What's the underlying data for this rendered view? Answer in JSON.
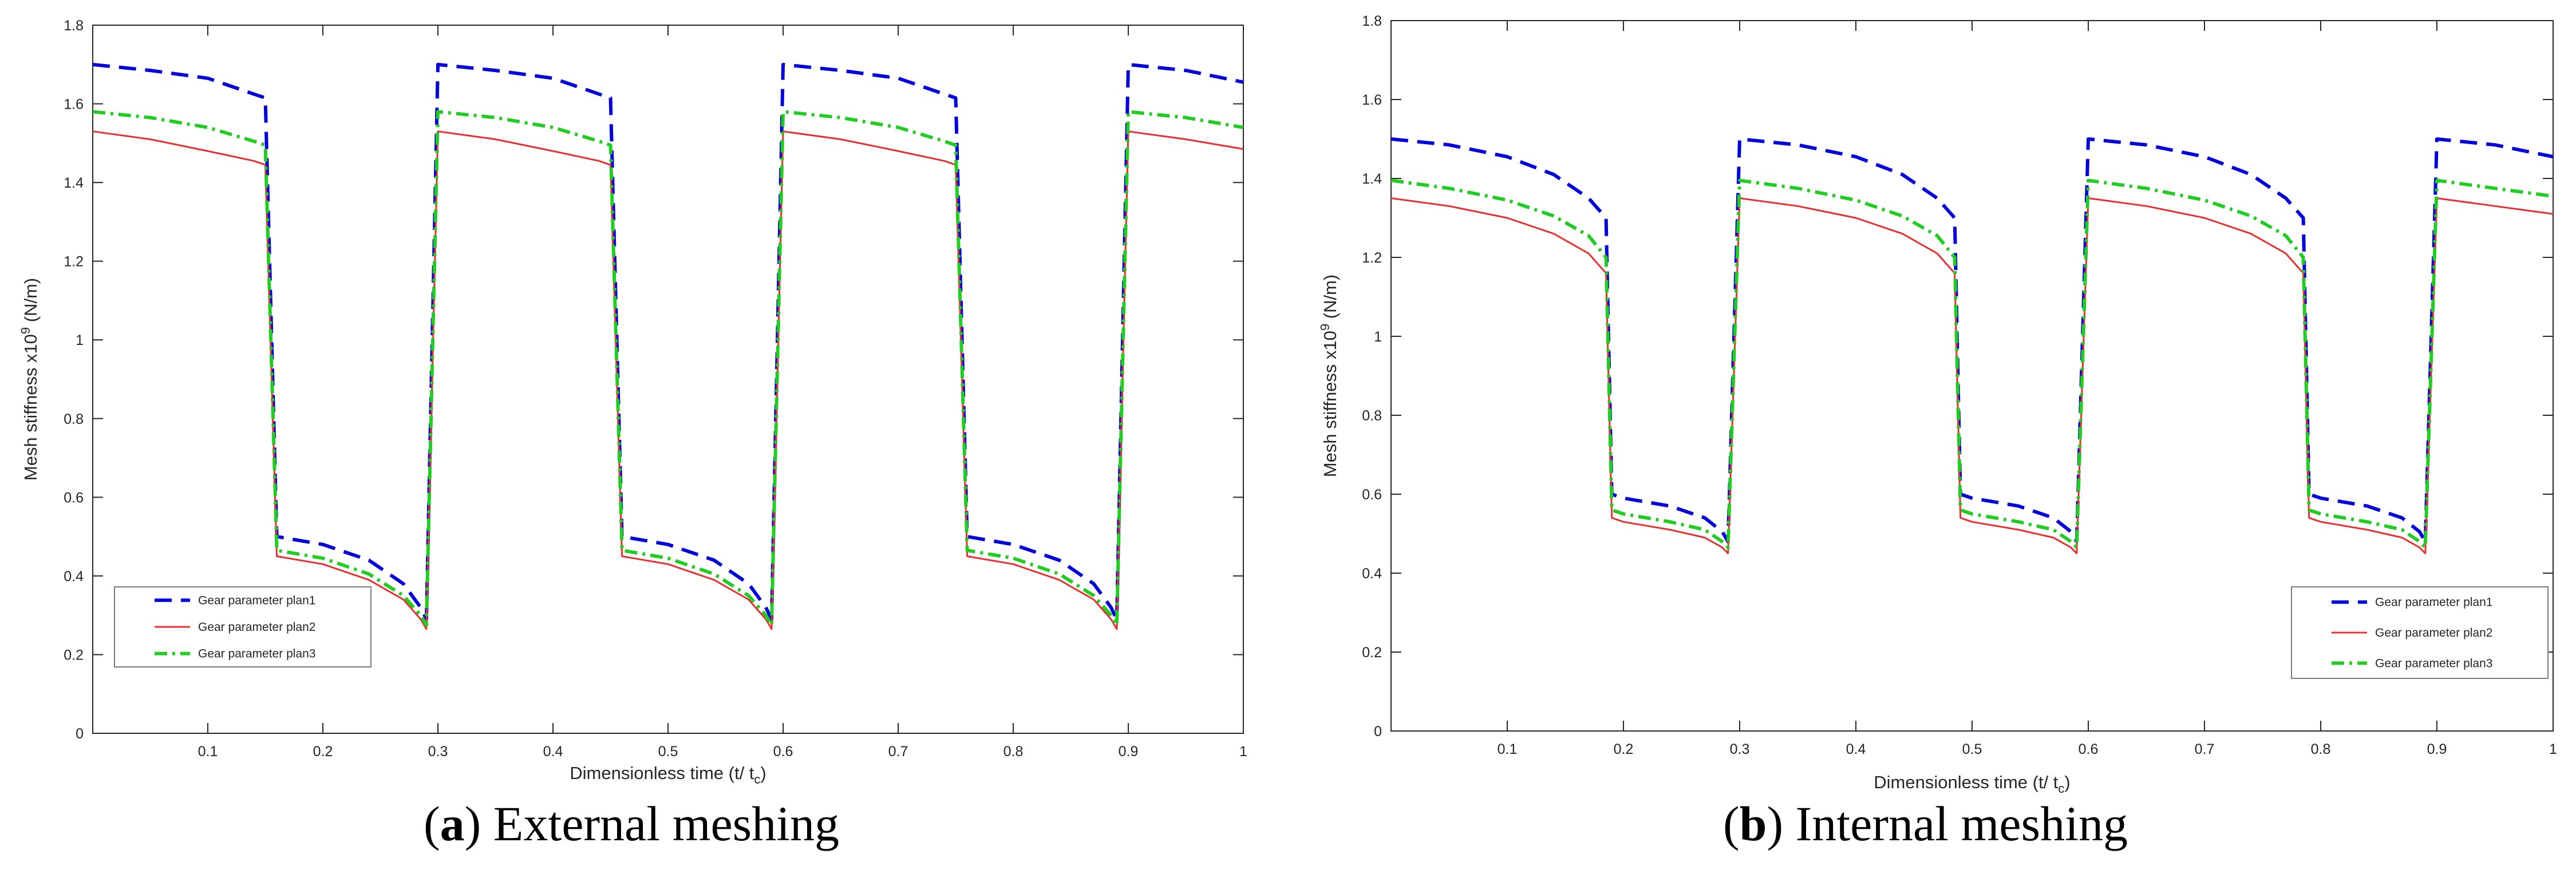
{
  "chart_data": [
    {
      "type": "line",
      "caption": {
        "letter": "a",
        "text": "External meshing"
      },
      "xlabel": "Dimensionless time (t/ t",
      "xlabel_sub": "c",
      "ylabel": "Mesh stiffness  x10",
      "ylabel_sup": "9",
      "ylabel_unit": " (N/m)",
      "xlim": [
        0,
        1
      ],
      "ylim": [
        0,
        1.8
      ],
      "xticks": [
        "0.1",
        "0.2",
        "0.3",
        "0.4",
        "0.5",
        "0.6",
        "0.7",
        "0.8",
        "0.9",
        "1"
      ],
      "yticks": [
        "0",
        "0.2",
        "0.4",
        "0.6",
        "0.8",
        "1",
        "1.2",
        "1.4",
        "1.6",
        "1.8"
      ],
      "legend_position": "bottom-left",
      "series": [
        {
          "name": "Gear parameter plan1",
          "color": "#0000dd",
          "dash": "dashed",
          "x": [
            0,
            0.05,
            0.1,
            0.14,
            0.15,
            0.16,
            0.2,
            0.24,
            0.27,
            0.285,
            0.29,
            0.3,
            0.35,
            0.4,
            0.44,
            0.45,
            0.46,
            0.5,
            0.54,
            0.57,
            0.585,
            0.59,
            0.6,
            0.65,
            0.7,
            0.74,
            0.75,
            0.76,
            0.8,
            0.84,
            0.87,
            0.885,
            0.89,
            0.9,
            0.95,
            1.0
          ],
          "y": [
            1.7,
            1.685,
            1.665,
            1.625,
            1.615,
            0.5,
            0.48,
            0.44,
            0.38,
            0.32,
            0.29,
            1.7,
            1.685,
            1.665,
            1.625,
            1.615,
            0.5,
            0.48,
            0.44,
            0.38,
            0.32,
            0.29,
            1.7,
            1.685,
            1.665,
            1.625,
            1.615,
            0.5,
            0.48,
            0.44,
            0.38,
            0.32,
            0.29,
            1.7,
            1.685,
            1.655
          ]
        },
        {
          "name": "Gear parameter plan2",
          "color": "#e83030",
          "dash": "solid",
          "x": [
            0,
            0.05,
            0.1,
            0.14,
            0.15,
            0.16,
            0.2,
            0.24,
            0.27,
            0.285,
            0.29,
            0.3,
            0.35,
            0.4,
            0.44,
            0.45,
            0.46,
            0.5,
            0.54,
            0.57,
            0.585,
            0.59,
            0.6,
            0.65,
            0.7,
            0.74,
            0.75,
            0.76,
            0.8,
            0.84,
            0.87,
            0.885,
            0.89,
            0.9,
            0.95,
            1.0
          ],
          "y": [
            1.53,
            1.51,
            1.48,
            1.455,
            1.445,
            0.45,
            0.43,
            0.39,
            0.34,
            0.29,
            0.265,
            1.53,
            1.51,
            1.48,
            1.455,
            1.445,
            0.45,
            0.43,
            0.39,
            0.34,
            0.29,
            0.265,
            1.53,
            1.51,
            1.48,
            1.455,
            1.445,
            0.45,
            0.43,
            0.39,
            0.34,
            0.29,
            0.265,
            1.53,
            1.51,
            1.485
          ]
        },
        {
          "name": "Gear parameter plan3",
          "color": "#22cc22",
          "dash": "dashdot",
          "x": [
            0,
            0.05,
            0.1,
            0.14,
            0.15,
            0.16,
            0.2,
            0.24,
            0.27,
            0.285,
            0.29,
            0.3,
            0.35,
            0.4,
            0.44,
            0.45,
            0.46,
            0.5,
            0.54,
            0.57,
            0.585,
            0.59,
            0.6,
            0.65,
            0.7,
            0.74,
            0.75,
            0.76,
            0.8,
            0.84,
            0.87,
            0.885,
            0.89,
            0.9,
            0.95,
            1.0
          ],
          "y": [
            1.58,
            1.565,
            1.54,
            1.505,
            1.495,
            0.465,
            0.445,
            0.405,
            0.35,
            0.3,
            0.275,
            1.58,
            1.565,
            1.54,
            1.505,
            1.495,
            0.465,
            0.445,
            0.405,
            0.35,
            0.3,
            0.275,
            1.58,
            1.565,
            1.54,
            1.505,
            1.495,
            0.465,
            0.445,
            0.405,
            0.35,
            0.3,
            0.275,
            1.58,
            1.565,
            1.54
          ]
        }
      ]
    },
    {
      "type": "line",
      "caption": {
        "letter": "b",
        "text": "Internal meshing"
      },
      "xlabel": "Dimensionless time (t/ t",
      "xlabel_sub": "c",
      "ylabel": "Mesh stiffness  x10",
      "ylabel_sup": "9",
      "ylabel_unit": " (N/m)",
      "xlim": [
        0,
        1
      ],
      "ylim": [
        0,
        1.8
      ],
      "xticks": [
        "0.1",
        "0.2",
        "0.3",
        "0.4",
        "0.5",
        "0.6",
        "0.7",
        "0.8",
        "0.9",
        "1"
      ],
      "yticks": [
        "0",
        "0.2",
        "0.4",
        "0.6",
        "0.8",
        "1",
        "1.2",
        "1.4",
        "1.6",
        "1.8"
      ],
      "legend_position": "bottom-right",
      "series": [
        {
          "name": "Gear parameter plan1",
          "color": "#0000dd",
          "dash": "dashed",
          "x": [
            0,
            0.05,
            0.1,
            0.14,
            0.17,
            0.185,
            0.19,
            0.2,
            0.24,
            0.27,
            0.285,
            0.29,
            0.3,
            0.35,
            0.4,
            0.44,
            0.47,
            0.485,
            0.49,
            0.5,
            0.54,
            0.57,
            0.585,
            0.59,
            0.6,
            0.65,
            0.7,
            0.74,
            0.77,
            0.785,
            0.79,
            0.8,
            0.84,
            0.87,
            0.885,
            0.89,
            0.9,
            0.95,
            1.0
          ],
          "y": [
            1.5,
            1.485,
            1.455,
            1.41,
            1.35,
            1.3,
            0.6,
            0.59,
            0.57,
            0.54,
            0.505,
            0.48,
            1.5,
            1.485,
            1.455,
            1.41,
            1.35,
            1.3,
            0.6,
            0.59,
            0.57,
            0.54,
            0.505,
            0.48,
            1.5,
            1.485,
            1.455,
            1.41,
            1.35,
            1.3,
            0.6,
            0.59,
            0.57,
            0.54,
            0.505,
            0.48,
            1.5,
            1.485,
            1.455
          ]
        },
        {
          "name": "Gear parameter plan2",
          "color": "#e83030",
          "dash": "solid",
          "x": [
            0,
            0.05,
            0.1,
            0.14,
            0.17,
            0.185,
            0.19,
            0.2,
            0.24,
            0.27,
            0.285,
            0.29,
            0.3,
            0.35,
            0.4,
            0.44,
            0.47,
            0.485,
            0.49,
            0.5,
            0.54,
            0.57,
            0.585,
            0.59,
            0.6,
            0.65,
            0.7,
            0.74,
            0.77,
            0.785,
            0.79,
            0.8,
            0.84,
            0.87,
            0.885,
            0.89,
            0.9,
            0.95,
            1.0
          ],
          "y": [
            1.35,
            1.33,
            1.3,
            1.26,
            1.21,
            1.16,
            0.54,
            0.53,
            0.51,
            0.49,
            0.465,
            0.45,
            1.35,
            1.33,
            1.3,
            1.26,
            1.21,
            1.16,
            0.54,
            0.53,
            0.51,
            0.49,
            0.465,
            0.45,
            1.35,
            1.33,
            1.3,
            1.26,
            1.21,
            1.16,
            0.54,
            0.53,
            0.51,
            0.49,
            0.465,
            0.45,
            1.35,
            1.33,
            1.31
          ]
        },
        {
          "name": "Gear parameter plan3",
          "color": "#22cc22",
          "dash": "dashdot",
          "x": [
            0,
            0.05,
            0.1,
            0.14,
            0.17,
            0.185,
            0.19,
            0.2,
            0.24,
            0.27,
            0.285,
            0.29,
            0.3,
            0.35,
            0.4,
            0.44,
            0.47,
            0.485,
            0.49,
            0.5,
            0.54,
            0.57,
            0.585,
            0.59,
            0.6,
            0.65,
            0.7,
            0.74,
            0.77,
            0.785,
            0.79,
            0.8,
            0.84,
            0.87,
            0.885,
            0.89,
            0.9,
            0.95,
            1.0
          ],
          "y": [
            1.395,
            1.375,
            1.345,
            1.305,
            1.255,
            1.2,
            0.56,
            0.55,
            0.53,
            0.51,
            0.48,
            0.465,
            1.395,
            1.375,
            1.345,
            1.305,
            1.255,
            1.2,
            0.56,
            0.55,
            0.53,
            0.51,
            0.48,
            0.465,
            1.395,
            1.375,
            1.345,
            1.305,
            1.255,
            1.2,
            0.56,
            0.55,
            0.53,
            0.51,
            0.48,
            0.465,
            1.395,
            1.375,
            1.355
          ]
        }
      ]
    }
  ]
}
